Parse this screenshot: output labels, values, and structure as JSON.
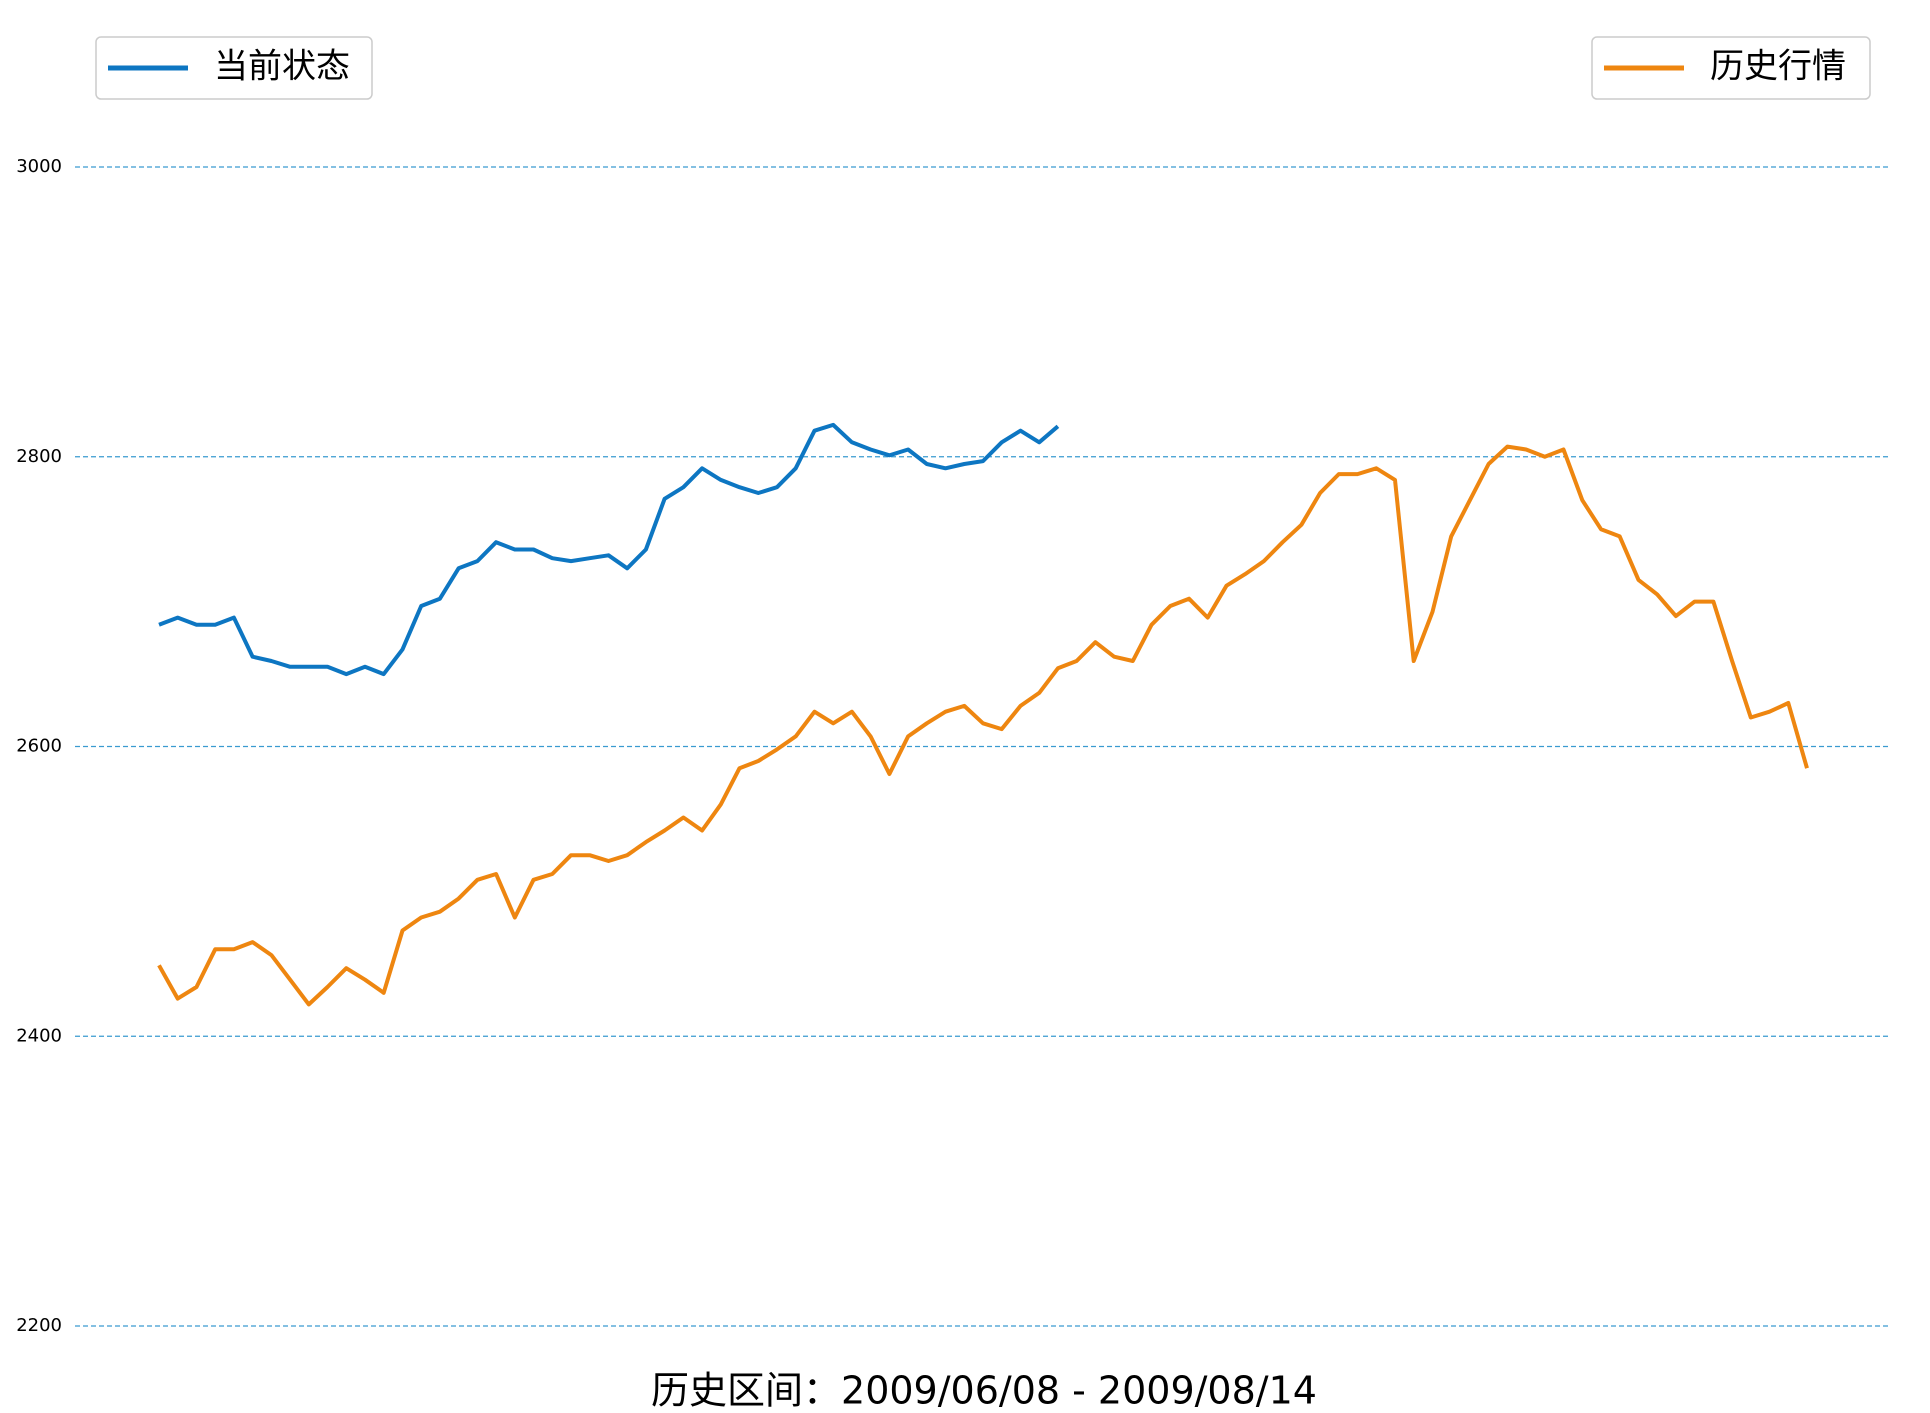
{
  "chart_data": {
    "type": "line",
    "title": "历史区间：2009/06/08 - 2009/08/14",
    "ylim": [
      2200,
      3000
    ],
    "yticks": [
      2200,
      2400,
      2600,
      2800,
      3000
    ],
    "grid": true,
    "series": [
      {
        "name": "当前状态",
        "color": "#0d76c2",
        "legend": "upper left",
        "values": [
          2684,
          2689,
          2684,
          2684,
          2689,
          2662,
          2659,
          2655,
          2655,
          2655,
          2650,
          2655,
          2650,
          2667,
          2697,
          2702,
          2723,
          2728,
          2741,
          2736,
          2736,
          2730,
          2728,
          2730,
          2732,
          2723,
          2736,
          2771,
          2779,
          2792,
          2784,
          2779,
          2775,
          2779,
          2792,
          2818,
          2822,
          2810,
          2805,
          2801,
          2805,
          2795,
          2792,
          2795,
          2797,
          2810,
          2818,
          2810,
          2821
        ]
      },
      {
        "name": "历史行情",
        "color": "#ee8610",
        "legend": "upper right",
        "values": [
          2449,
          2426,
          2434,
          2460,
          2460,
          2465,
          2456,
          2439,
          2422,
          2434,
          2447,
          2439,
          2430,
          2473,
          2482,
          2486,
          2495,
          2508,
          2512,
          2482,
          2508,
          2512,
          2525,
          2525,
          2521,
          2525,
          2534,
          2542,
          2551,
          2542,
          2560,
          2585,
          2590,
          2598,
          2607,
          2624,
          2616,
          2624,
          2607,
          2581,
          2607,
          2616,
          2624,
          2628,
          2616,
          2612,
          2628,
          2637,
          2654,
          2659,
          2672,
          2662,
          2659,
          2684,
          2697,
          2702,
          2689,
          2711,
          2719,
          2728,
          2741,
          2753,
          2775,
          2788,
          2788,
          2792,
          2784,
          2659,
          2693,
          2745,
          2770,
          2795,
          2807,
          2805,
          2800,
          2805,
          2770,
          2750,
          2745,
          2715,
          2705,
          2690,
          2700,
          2700,
          2659,
          2620,
          2624,
          2630,
          2585
        ]
      }
    ]
  }
}
